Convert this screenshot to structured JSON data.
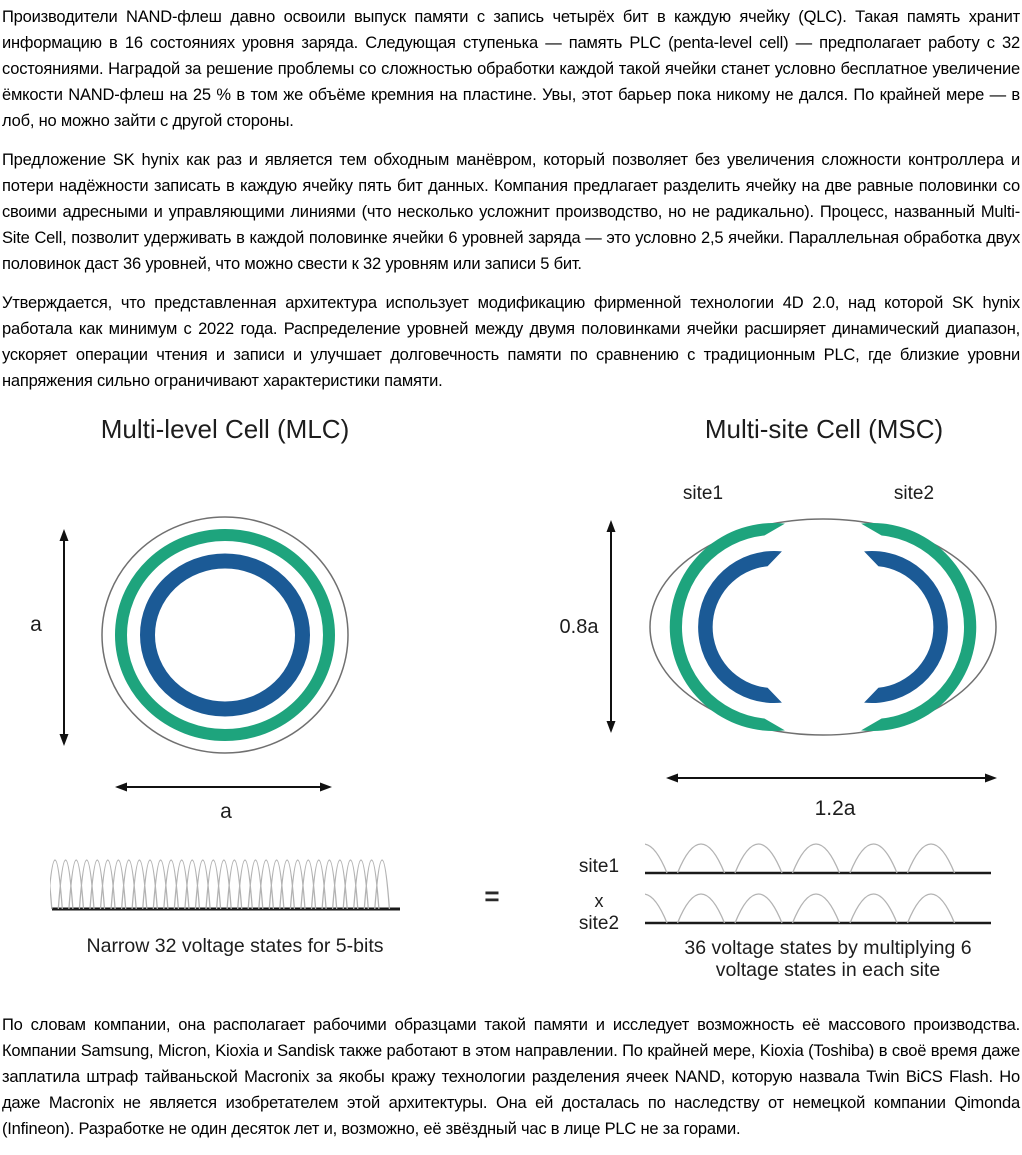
{
  "article": {
    "paragraphs": [
      "Производители NAND-флеш давно освоили выпуск памяти с запись четырёх бит в каждую ячейку (QLC). Такая память хранит информацию в 16 состояниях уровня заряда. Следующая ступенька — память PLC (penta-level cell) — предполагает работу с 32 состояниями. Наградой за решение проблемы со сложностью обработки каждой такой ячейки станет условно бесплатное увеличение ёмкости NAND-флеш на 25 % в том же объёме кремния на пластине. Увы, этот барьер пока никому не дался. По крайней мере — в лоб, но можно зайти с другой стороны.",
      "Предложение SK hynix как раз и является тем обходным манёвром, который позволяет без увеличения сложности контроллера и потери надёжности записать в каждую ячейку пять бит данных. Компания предлагает разделить ячейку на две равные половинки со своими адресными и управляющими линиями (что несколько усложнит производство, но не радикально). Процесс, названный Multi-Site Cell, позволит удерживать в каждой половинке ячейки 6 уровней заряда — это условно 2,5 ячейки. Параллельная обработка двух половинок даст 36 уровней, что можно свести к 32 уровням или записи 5 бит.",
      "Утверждается, что представленная архитектура использует модификацию фирменной технологии 4D 2.0, над которой SK hynix работала как минимум с 2022 года. Распределение уровней между двумя половинками ячейки расширяет динамический диапазон, ускоряет операции чтения и записи и улучшает долговечность памяти по сравнению с традиционным PLC, где близкие уровни напряжения сильно ограничивают характеристики памяти.",
      "По словам компании, она располагает рабочими образцами такой памяти и исследует возможность её массового производства. Компании Samsung, Micron, Kioxia и Sandisk также работают в этом направлении. По крайней мере, Kioxia (Toshiba) в своё время даже заплатила штраф тайваньской Macronix за якобы кражу технологии разделения ячеек NAND, которую назвала Twin BiCS Flash. Но даже Macronix не является изобретателем этой архитектуры. Она ей досталась по наследству от немецкой компании Qimonda (Infineon). Разработке не один десяток лет и, возможно, её звёздный час в лице PLC не за горами."
    ]
  },
  "figure": {
    "mlc": {
      "title": "Multi-level Cell (MLC)",
      "height_label": "a",
      "width_label": "a",
      "caption": "Narrow 32 voltage states for 5-bits",
      "voltage_states": 32
    },
    "msc": {
      "title": "Multi-site Cell (MSC)",
      "site1_label": "site1",
      "site2_label": "site2",
      "height_label": "0.8a",
      "width_label": "1.2a",
      "waveform_site1_label": "site1",
      "multiply_label": "x",
      "waveform_site2_label": "site2",
      "caption_line1": "36 voltage states by multiplying 6",
      "caption_line2": "voltage states in each site",
      "voltage_states_per_site": 6
    },
    "equals_sign": "=",
    "colors": {
      "green": "#1ea47d",
      "blue": "#1b5a96",
      "outline": "#707070",
      "waveform": "#b3b3b3",
      "ink": "#111111"
    }
  }
}
